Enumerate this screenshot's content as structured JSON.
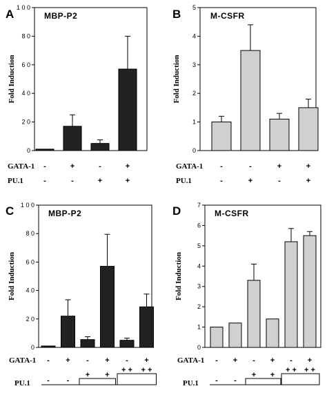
{
  "chart_data": [
    {
      "panel": "A",
      "type": "bar",
      "title": "MBP-P2",
      "ylabel": "Fold Induction",
      "ylim": [
        0,
        100
      ],
      "yticks": [
        0,
        20,
        40,
        60,
        80,
        100
      ],
      "ytick_labels": [
        "0",
        "2 0",
        "4 0",
        "6 0",
        "8 0",
        "1 0 0"
      ],
      "bar_color": "#222222",
      "values": [
        1,
        17,
        5,
        57
      ],
      "errors": [
        0,
        8,
        2.5,
        23
      ],
      "conditions": [
        {
          "name": "GATA-1",
          "signs": [
            "-",
            "+",
            "-",
            "+"
          ]
        },
        {
          "name": "PU.1",
          "signs": [
            "-",
            "-",
            "+",
            "+"
          ]
        }
      ]
    },
    {
      "panel": "B",
      "type": "bar",
      "title": "M-CSFR",
      "ylabel": "Fold Induction",
      "ylim": [
        0,
        5
      ],
      "yticks": [
        0,
        1,
        2,
        3,
        4,
        5
      ],
      "ytick_labels": [
        "0",
        "1",
        "2",
        "3",
        "4",
        "5"
      ],
      "bar_color": "#d0d0d0",
      "values": [
        1.0,
        3.5,
        1.1,
        1.5
      ],
      "errors": [
        0.2,
        0.9,
        0.2,
        0.3
      ],
      "conditions": [
        {
          "name": "GATA-1",
          "signs": [
            "-",
            "-",
            "+",
            "+"
          ]
        },
        {
          "name": "PU.1",
          "signs": [
            "-",
            "+",
            "-",
            "+"
          ]
        }
      ]
    },
    {
      "panel": "C",
      "type": "bar",
      "title": "MBP-P2",
      "ylabel": "Fold Induction",
      "ylim": [
        0,
        100
      ],
      "yticks": [
        0,
        20,
        40,
        60,
        80,
        100
      ],
      "ytick_labels": [
        "0",
        "2 0",
        "4 0",
        "6 0",
        "8 0",
        "1 0 0"
      ],
      "bar_color": "#222222",
      "values": [
        1,
        22,
        5.5,
        57,
        5,
        28.5
      ],
      "errors": [
        0,
        11.5,
        2,
        22.5,
        1.5,
        9
      ],
      "conditions": [
        {
          "name": "GATA-1",
          "signs": [
            "-",
            "+",
            "-",
            "+",
            "-",
            "+"
          ]
        }
      ],
      "pu1": {
        "name": "PU.1",
        "signs": [
          "-",
          "-",
          "+",
          "+",
          "+ +",
          "+ +"
        ]
      }
    },
    {
      "panel": "D",
      "type": "bar",
      "title": "M-CSFR",
      "ylabel": "Fold Induction",
      "ylim": [
        0,
        7
      ],
      "yticks": [
        0,
        1,
        2,
        3,
        4,
        5,
        6,
        7
      ],
      "ytick_labels": [
        "0",
        "1",
        "2",
        "3",
        "4",
        "5",
        "6",
        "7"
      ],
      "bar_color": "#d0d0d0",
      "values": [
        1.0,
        1.2,
        3.3,
        1.4,
        5.2,
        5.5
      ],
      "errors": [
        0,
        0,
        0.8,
        0,
        0.65,
        0.2
      ],
      "conditions": [
        {
          "name": "GATA-1",
          "signs": [
            "-",
            "+",
            "-",
            "+",
            "-",
            "+"
          ]
        }
      ],
      "pu1": {
        "name": "PU.1",
        "signs": [
          "-",
          "-",
          "+",
          "+",
          "+ +",
          "+ +"
        ]
      }
    }
  ]
}
